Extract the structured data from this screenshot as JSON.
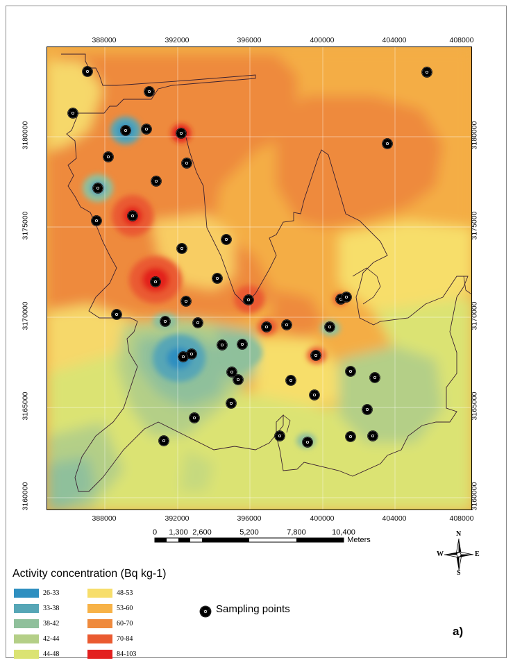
{
  "map": {
    "x_ticks": [
      "388000",
      "392000",
      "396000",
      "400000",
      "404000",
      "408000"
    ],
    "y_ticks": [
      "3180000",
      "3175000",
      "3170000",
      "3165000",
      "3160000"
    ],
    "scale_bar": {
      "labels": [
        "0",
        "1,300",
        "2,600",
        "5,200",
        "7,800",
        "10,400"
      ],
      "unit": "Meters"
    },
    "compass": {
      "n": "N",
      "s": "S",
      "e": "E",
      "w": "W"
    },
    "panel_label": "a)",
    "sampling_points_count": 47
  },
  "legend": {
    "title": "Activity concentration (Bq kg-1)",
    "classes": [
      {
        "label": "26-33",
        "color": "#2e8fc0"
      },
      {
        "label": "33-38",
        "color": "#56a6b6"
      },
      {
        "label": "38-42",
        "color": "#8fc09b"
      },
      {
        "label": "42-44",
        "color": "#b4cf87"
      },
      {
        "label": "44-48",
        "color": "#dbe373"
      },
      {
        "label": "48-53",
        "color": "#f7de6b"
      },
      {
        "label": "53-60",
        "color": "#f7b247"
      },
      {
        "label": "60-70",
        "color": "#ef8a3d"
      },
      {
        "label": "70-84",
        "color": "#ea5a30"
      },
      {
        "label": "84-103",
        "color": "#e3201f"
      }
    ],
    "sampling_label": "Sampling points"
  }
}
